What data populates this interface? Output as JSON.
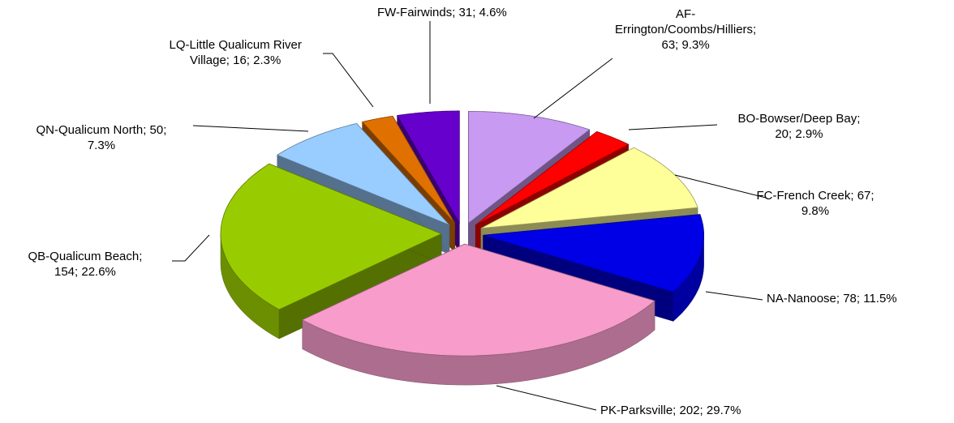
{
  "chart_data": {
    "type": "pie",
    "values": [
      63,
      20,
      67,
      78,
      202,
      154,
      50,
      16,
      31
    ],
    "value_labels": [
      "AF-\nErrington/Coombs/Hilliers;\n63; 9.3%",
      "BO-Bowser/Deep Bay;\n20; 2.9%",
      "FC-French Creek; 67;\n9.8%",
      "NA-Nanoose; 78; 11.5%",
      "PK-Parksville; 202; 29.7%",
      "QB-Qualicum Beach;\n154; 22.6%",
      "QN-Qualicum North; 50;\n7.3%",
      "LQ-Little Qualicum River\nVillage; 16; 2.3%",
      "FW-Fairwinds; 31; 4.6%"
    ],
    "colors": [
      "#c99af2",
      "#ff0000",
      "#ffff99",
      "#0000e6",
      "#f79ccb",
      "#99cc00",
      "#99ccff",
      "#e07000",
      "#6600cc"
    ]
  }
}
